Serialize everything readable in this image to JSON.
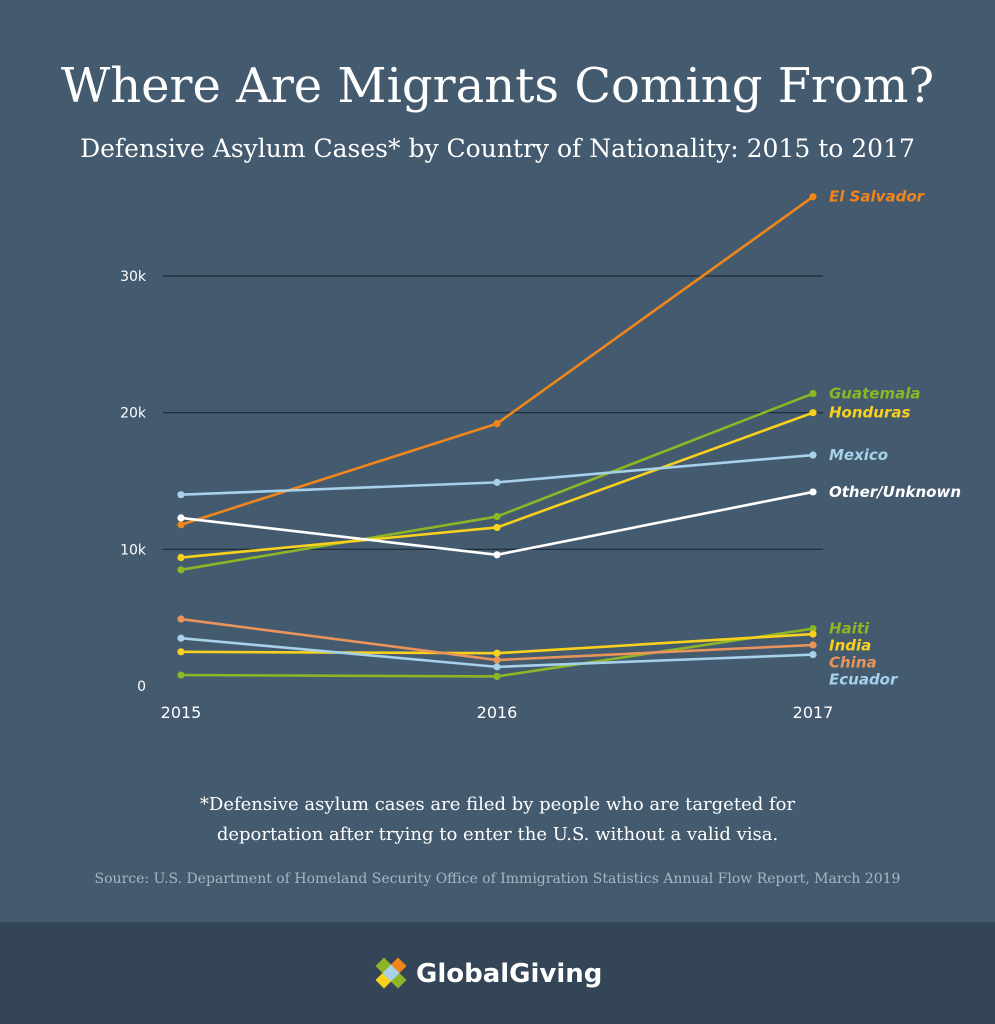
{
  "title": "Where Are Migrants Coming From?",
  "subtitle": "Defensive Asylum Cases* by Country of Nationality: 2015 to 2017",
  "footnote_line1": "*Defensive asylum cases are filed by people who are targeted for",
  "footnote_line2": "deportation after trying to enter the U.S. without a valid visa.",
  "source": "Source: U.S. Department of Homeland Security Office of Immigration Statistics Annual Flow Report, March 2019",
  "brand": "GlobalGiving",
  "colors": {
    "background": "#435a6f",
    "footer": "#334557",
    "gridline": "#1e2a36"
  },
  "chart_data": {
    "type": "line",
    "x": [
      "2015",
      "2016",
      "2017"
    ],
    "y_ticks": [
      {
        "value": 0,
        "label": "0"
      },
      {
        "value": 10000,
        "label": "10k"
      },
      {
        "value": 20000,
        "label": "20k"
      },
      {
        "value": 30000,
        "label": "30k"
      }
    ],
    "ylim": [
      0,
      36000
    ],
    "grid": true,
    "legend": "inline labels at line ends",
    "series": [
      {
        "name": "El Salvador",
        "color": "#f0861b",
        "values": [
          11800,
          19200,
          35800
        ]
      },
      {
        "name": "Guatemala",
        "color": "#8db526",
        "values": [
          8500,
          12400,
          21400
        ]
      },
      {
        "name": "Honduras",
        "color": "#f9d11c",
        "values": [
          9400,
          11600,
          20000
        ]
      },
      {
        "name": "Mexico",
        "color": "#a6d1e8",
        "values": [
          14000,
          14900,
          16900
        ]
      },
      {
        "name": "Other/Unknown",
        "color": "#ffffff",
        "values": [
          12300,
          9600,
          14200
        ]
      },
      {
        "name": "Haiti",
        "color": "#8db526",
        "values": [
          800,
          700,
          4200
        ]
      },
      {
        "name": "India",
        "color": "#f9d11c",
        "values": [
          2500,
          2400,
          3800
        ]
      },
      {
        "name": "China",
        "color": "#e9945a",
        "values": [
          4900,
          1900,
          3000
        ]
      },
      {
        "name": "Ecuador",
        "color": "#a6d1e8",
        "values": [
          3500,
          1400,
          2300
        ]
      }
    ]
  }
}
